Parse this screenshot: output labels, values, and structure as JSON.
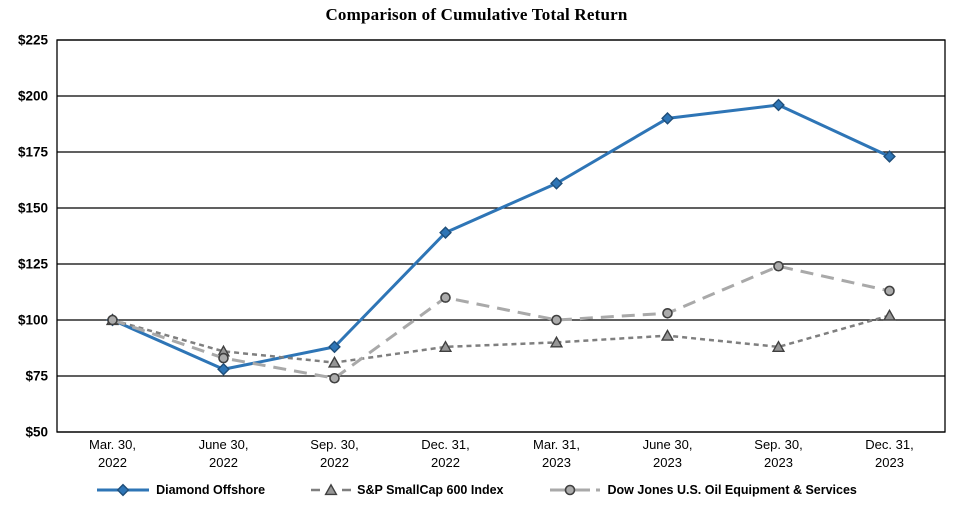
{
  "chart_data": {
    "type": "line",
    "title": "Comparison of Cumulative Total Return",
    "x_labels": [
      [
        "Mar. 30,",
        "2022"
      ],
      [
        "June 30,",
        "2022"
      ],
      [
        "Sep. 30,",
        "2022"
      ],
      [
        "Dec. 31,",
        "2022"
      ],
      [
        "Mar. 31,",
        "2023"
      ],
      [
        "June 30,",
        "2023"
      ],
      [
        "Sep. 30,",
        "2023"
      ],
      [
        "Dec. 31,",
        "2023"
      ]
    ],
    "y_tick_labels": [
      "$225",
      "$200",
      "$175",
      "$150",
      "$125",
      "$100",
      "$75",
      "$50"
    ],
    "ylim": [
      50,
      225
    ],
    "y_step": 25,
    "grid": true,
    "legend_position": "bottom",
    "axis_color": "#000000",
    "background_color": "#FFFFFF",
    "series": [
      {
        "name": "Diamond Offshore",
        "marker": "diamond",
        "dash": "solid",
        "color": "#2E75B6",
        "marker_fill": "#2E75B6",
        "marker_stroke": "#1F4E79",
        "values": [
          100,
          78,
          88,
          139,
          161,
          190,
          196,
          173
        ]
      },
      {
        "name": "S&P SmallCap 600 Index",
        "marker": "triangle",
        "dash": "short-dash",
        "color": "#7F7F7F",
        "marker_fill": "#969696",
        "marker_stroke": "#404040",
        "values": [
          100,
          86,
          81,
          88,
          90,
          93,
          88,
          102
        ]
      },
      {
        "name": "Dow Jones U.S. Oil Equipment & Services",
        "marker": "circle",
        "dash": "long-dash",
        "color": "#A9A9A9",
        "marker_fill": "#ABABAB",
        "marker_stroke": "#404040",
        "values": [
          100,
          83,
          74,
          110,
          100,
          103,
          124,
          113
        ]
      }
    ]
  }
}
